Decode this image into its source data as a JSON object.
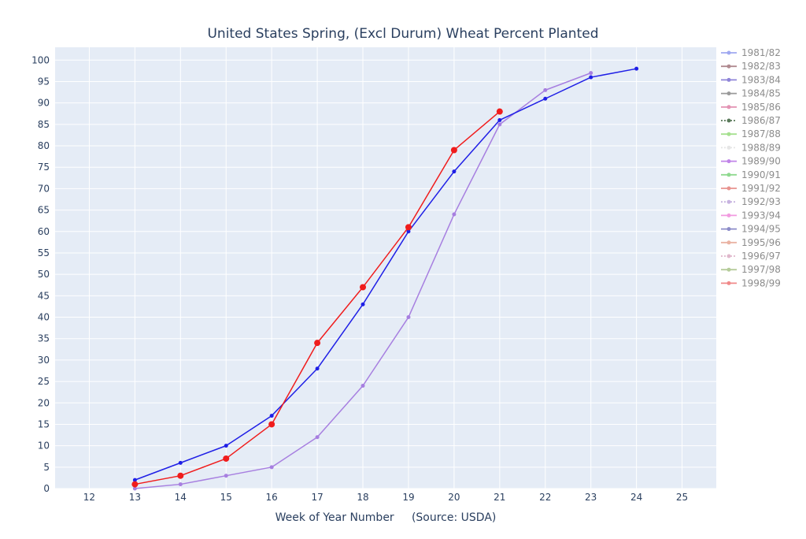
{
  "chart_data": {
    "type": "line",
    "title": "United States Spring, (Excl Durum) Wheat Percent Planted",
    "xlabel": "Week of Year Number     (Source: USDA)",
    "ylabel": "",
    "xlim": [
      11.25,
      25.75
    ],
    "ylim": [
      0,
      103
    ],
    "x_ticks": [
      12,
      13,
      14,
      15,
      16,
      17,
      18,
      19,
      20,
      21,
      22,
      23,
      24,
      25
    ],
    "y_ticks": [
      0,
      5,
      10,
      15,
      20,
      25,
      30,
      35,
      40,
      45,
      50,
      55,
      60,
      65,
      70,
      75,
      80,
      85,
      90,
      95,
      100
    ],
    "grid": true,
    "legend_position": "right",
    "legend": [
      {
        "name": "1981/82",
        "color": "#9fa8f0",
        "dash": "solid"
      },
      {
        "name": "1982/83",
        "color": "#b08a90",
        "dash": "solid"
      },
      {
        "name": "1983/84",
        "color": "#8f85d8",
        "dash": "solid"
      },
      {
        "name": "1984/85",
        "color": "#9a9a9a",
        "dash": "solid"
      },
      {
        "name": "1985/86",
        "color": "#e394b4",
        "dash": "solid"
      },
      {
        "name": "1986/87",
        "color": "#5a7a5a",
        "dash": "dot"
      },
      {
        "name": "1987/88",
        "color": "#a6e08f",
        "dash": "solid"
      },
      {
        "name": "1988/89",
        "color": "#e6e6e6",
        "dash": "dot"
      },
      {
        "name": "1989/90",
        "color": "#c084e8",
        "dash": "solid"
      },
      {
        "name": "1990/91",
        "color": "#8fd98f",
        "dash": "solid"
      },
      {
        "name": "1991/92",
        "color": "#e8938f",
        "dash": "solid"
      },
      {
        "name": "1992/93",
        "color": "#c7b3e0",
        "dash": "dot"
      },
      {
        "name": "1993/94",
        "color": "#f29be0",
        "dash": "solid"
      },
      {
        "name": "1994/95",
        "color": "#8c8cc8",
        "dash": "solid"
      },
      {
        "name": "1995/96",
        "color": "#eab3a3",
        "dash": "solid"
      },
      {
        "name": "1996/97",
        "color": "#e0b8cc",
        "dash": "dot"
      },
      {
        "name": "1997/98",
        "color": "#b5cc9a",
        "dash": "solid"
      },
      {
        "name": "1998/99",
        "color": "#f08a8a",
        "dash": "solid"
      }
    ],
    "series": [
      {
        "color": "#a77fe0",
        "marker_size": 2.5,
        "line_width": 1.5,
        "x": [
          13,
          14,
          15,
          16,
          17,
          18,
          19,
          20,
          21,
          22,
          23
        ],
        "y": [
          0,
          1,
          3,
          5,
          12,
          24,
          40,
          64,
          85,
          93,
          97
        ]
      },
      {
        "color": "#1f1fe6",
        "marker_size": 2.5,
        "line_width": 1.5,
        "x": [
          13,
          14,
          15,
          16,
          17,
          18,
          19,
          20,
          21,
          22,
          23,
          24
        ],
        "y": [
          2,
          6,
          10,
          17,
          28,
          43,
          60,
          74,
          86,
          91,
          96,
          98
        ]
      },
      {
        "color": "#f01c1c",
        "marker_size": 4,
        "line_width": 1.5,
        "x": [
          13,
          14,
          15,
          16,
          17,
          18,
          19,
          20,
          21
        ],
        "y": [
          1,
          3,
          7,
          15,
          34,
          47,
          61,
          79,
          88
        ]
      }
    ]
  }
}
